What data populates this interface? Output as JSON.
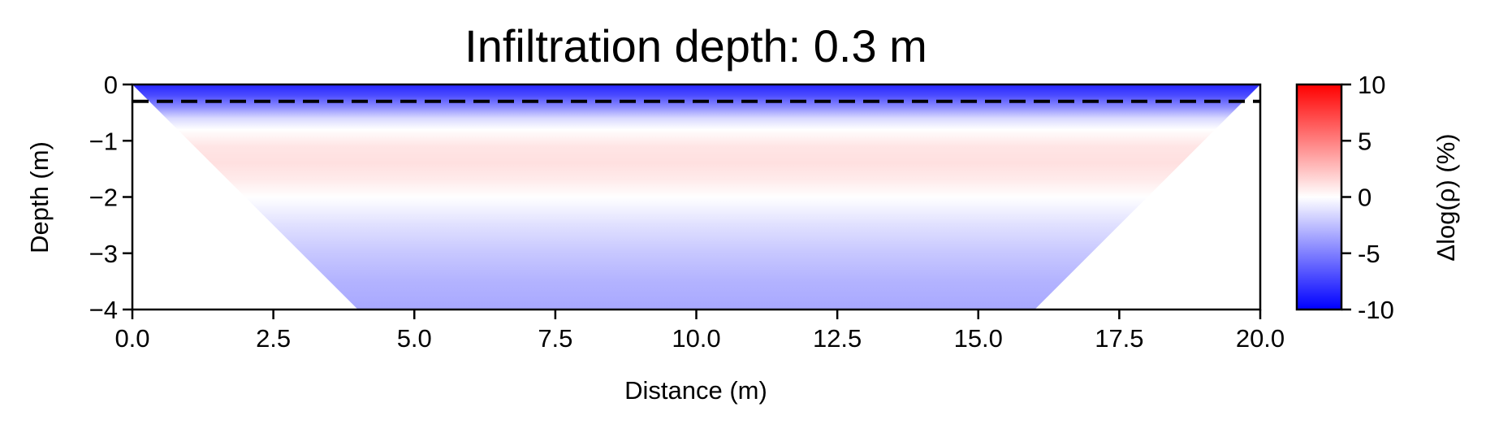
{
  "chart_data": {
    "type": "heatmap",
    "title": "Infiltration depth: 0.3 m",
    "xlabel": "Distance (m)",
    "ylabel": "Depth (m)",
    "xlim": [
      0,
      20
    ],
    "ylim": [
      -4,
      0
    ],
    "x_ticks": [
      "0.0",
      "2.5",
      "5.0",
      "7.5",
      "10.0",
      "12.5",
      "15.0",
      "17.5",
      "20.0"
    ],
    "y_ticks": [
      "0",
      "−1",
      "−2",
      "−3",
      "−4"
    ],
    "infiltration_depth_line": -0.3,
    "data_region": {
      "top_width": [
        0,
        20
      ],
      "bottom_width": [
        4,
        16
      ],
      "bottom_depth": -4
    },
    "depth_profile": [
      {
        "depth": 0.0,
        "value": -8.5
      },
      {
        "depth": -0.2,
        "value": -7.0
      },
      {
        "depth": -0.4,
        "value": -4.5
      },
      {
        "depth": -0.6,
        "value": -1.5
      },
      {
        "depth": -0.8,
        "value": 0.0
      },
      {
        "depth": -1.1,
        "value": 1.0
      },
      {
        "depth": -1.4,
        "value": 1.2
      },
      {
        "depth": -1.7,
        "value": 0.8
      },
      {
        "depth": -2.0,
        "value": 0.0
      },
      {
        "depth": -2.5,
        "value": -1.2
      },
      {
        "depth": -3.0,
        "value": -2.2
      },
      {
        "depth": -3.5,
        "value": -3.0
      },
      {
        "depth": -4.0,
        "value": -3.4
      }
    ],
    "colorbar": {
      "label": "Δlog(ρ) (%)",
      "range": [
        -10,
        10
      ],
      "ticks": [
        "10",
        "5",
        "0",
        "-5",
        "-10"
      ],
      "colormap": "bwr",
      "colors": {
        "low": "#0000ff",
        "mid": "#ffffff",
        "high": "#ff0000"
      }
    }
  }
}
